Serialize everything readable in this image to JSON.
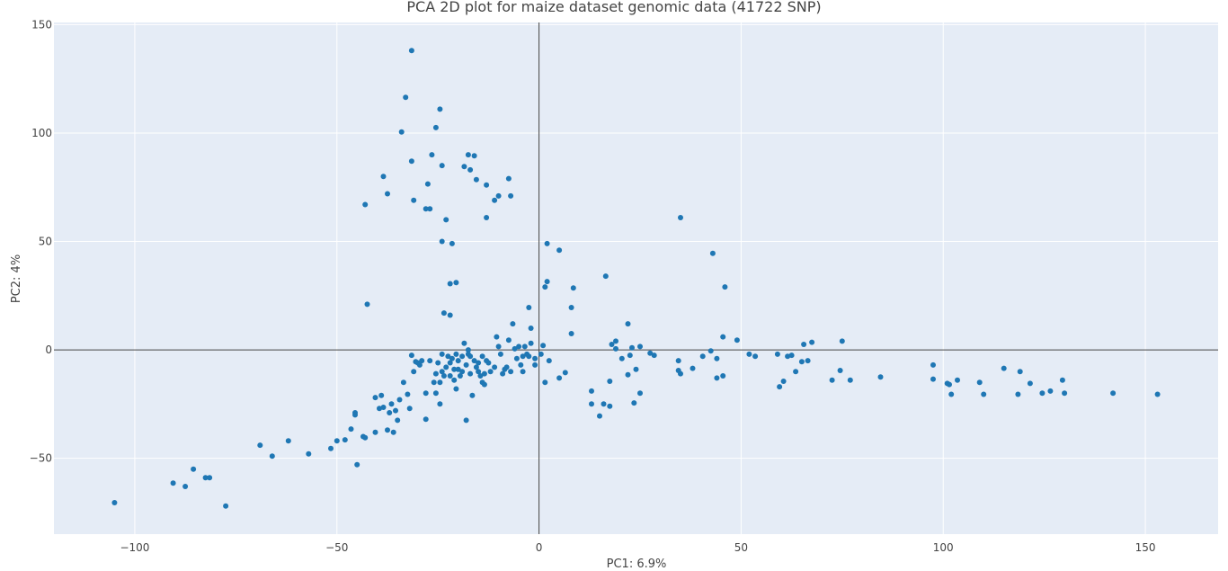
{
  "chart_data": {
    "type": "scatter",
    "title": "PCA 2D plot for maize dataset genomic data (41722 SNP)",
    "xlabel": "PC1: 6.9%",
    "ylabel": "PC2: 4%",
    "xlim": [
      -120,
      168
    ],
    "ylim": [
      -85,
      151
    ],
    "x_ticks": [
      -100,
      -50,
      0,
      50,
      100,
      150
    ],
    "y_ticks": [
      -50,
      0,
      50,
      100,
      150
    ],
    "x_tick_labels": [
      "−100",
      "−50",
      "0",
      "50",
      "100",
      "150"
    ],
    "y_tick_labels": [
      "−50",
      "0",
      "50",
      "100",
      "150"
    ],
    "grid": true,
    "zero_lines": true,
    "background_color": "#e5ecf6",
    "marker_color": "#1f77b4",
    "series": [
      {
        "points": [
          [
            -105,
            -70.5
          ],
          [
            -90.5,
            -61.5
          ],
          [
            -87.5,
            -63
          ],
          [
            -85.5,
            -55
          ],
          [
            -82.5,
            -59
          ],
          [
            -81.5,
            -59
          ],
          [
            -77.5,
            -72
          ],
          [
            -69,
            -44
          ],
          [
            -66,
            -49
          ],
          [
            -62,
            -42
          ],
          [
            -57,
            -48
          ],
          [
            -51.5,
            -45.5
          ],
          [
            -50,
            -42
          ],
          [
            -48,
            -41.5
          ],
          [
            -46.5,
            -36.5
          ],
          [
            -45.5,
            -29
          ],
          [
            -45.5,
            -30
          ],
          [
            -45,
            -53
          ],
          [
            -43.5,
            -40
          ],
          [
            -43,
            -40.5
          ],
          [
            -40.5,
            -38
          ],
          [
            -40.5,
            -22
          ],
          [
            -39.5,
            -27
          ],
          [
            -39,
            -21
          ],
          [
            -38.5,
            -26.5
          ],
          [
            -37.5,
            -37
          ],
          [
            -37,
            -29
          ],
          [
            -36.5,
            -25
          ],
          [
            -36,
            -38
          ],
          [
            -35.5,
            -28
          ],
          [
            -35,
            -32.5
          ],
          [
            -34.5,
            -23
          ],
          [
            -33.5,
            -15
          ],
          [
            -32.5,
            -20.5
          ],
          [
            -32,
            -27
          ],
          [
            -31.5,
            -2.5
          ],
          [
            -31,
            -10
          ],
          [
            -30.5,
            -5.5
          ],
          [
            -30,
            -6
          ],
          [
            -29.5,
            -7
          ],
          [
            -29,
            -5
          ],
          [
            -28,
            -20
          ],
          [
            -28,
            -32
          ],
          [
            -27,
            -5
          ],
          [
            -26,
            -15
          ],
          [
            -25.5,
            -20
          ],
          [
            -25.5,
            -11
          ],
          [
            -25,
            -6
          ],
          [
            -24.5,
            -15
          ],
          [
            -24.5,
            -25
          ],
          [
            -24,
            -2
          ],
          [
            -24,
            -10
          ],
          [
            -23.5,
            -12
          ],
          [
            -23,
            -8
          ],
          [
            -22.5,
            -3
          ],
          [
            -22,
            -12
          ],
          [
            -22,
            -6
          ],
          [
            -21.5,
            -4
          ],
          [
            -21,
            -14
          ],
          [
            -21,
            -9
          ],
          [
            -20.5,
            -2
          ],
          [
            -20.5,
            -18
          ],
          [
            -20,
            -5
          ],
          [
            -20,
            -9
          ],
          [
            -19.5,
            -12
          ],
          [
            -19,
            -3
          ],
          [
            -19,
            -10
          ],
          [
            -18.5,
            3
          ],
          [
            -18,
            -7
          ],
          [
            -18,
            -32.5
          ],
          [
            -17.5,
            0
          ],
          [
            -17.5,
            -2
          ],
          [
            -17,
            -3
          ],
          [
            -17,
            -11
          ],
          [
            -16.5,
            -21
          ],
          [
            -16,
            -5
          ],
          [
            -15.5,
            -8
          ],
          [
            -15,
            -10
          ],
          [
            -15,
            -6
          ],
          [
            -14.5,
            -12
          ],
          [
            -14,
            -3
          ],
          [
            -14,
            -15
          ],
          [
            -13.5,
            -11
          ],
          [
            -13.5,
            -16
          ],
          [
            -13,
            -5
          ],
          [
            -12.5,
            -6
          ],
          [
            -12,
            -10
          ],
          [
            -11,
            -8
          ],
          [
            -10.5,
            6
          ],
          [
            -10,
            1.5
          ],
          [
            -9.5,
            -2
          ],
          [
            -9,
            -11
          ],
          [
            -8.5,
            -9
          ],
          [
            -8,
            -8
          ],
          [
            -7.5,
            4.5
          ],
          [
            -7,
            -10
          ],
          [
            -6.5,
            12
          ],
          [
            -6,
            0.5
          ],
          [
            -5.5,
            -4
          ],
          [
            -5,
            1.5
          ],
          [
            -4.5,
            -7
          ],
          [
            -4,
            -3
          ],
          [
            -4,
            -10
          ],
          [
            -3.5,
            1.5
          ],
          [
            -3,
            -2
          ],
          [
            -2.5,
            -3
          ],
          [
            -2.5,
            19.5
          ],
          [
            -2,
            10
          ],
          [
            -2,
            3
          ],
          [
            -1,
            -4
          ],
          [
            -1,
            -7
          ],
          [
            0.5,
            -2
          ],
          [
            1,
            2
          ],
          [
            1.5,
            29
          ],
          [
            1.5,
            -15
          ],
          [
            2,
            31.5
          ],
          [
            2,
            49
          ],
          [
            2.5,
            -5
          ],
          [
            5,
            46
          ],
          [
            5,
            -13
          ],
          [
            6.5,
            -10.5
          ],
          [
            8,
            19.5
          ],
          [
            8,
            7.5
          ],
          [
            8.5,
            28.5
          ],
          [
            13,
            -19
          ],
          [
            13,
            -25
          ],
          [
            15,
            -30.5
          ],
          [
            16,
            -25
          ],
          [
            16.5,
            34
          ],
          [
            17.5,
            -14.5
          ],
          [
            17.5,
            -26
          ],
          [
            18,
            2.5
          ],
          [
            19,
            4
          ],
          [
            19,
            0.5
          ],
          [
            20.5,
            -4
          ],
          [
            22,
            -11.5
          ],
          [
            22,
            12
          ],
          [
            22.5,
            -2.5
          ],
          [
            23,
            1
          ],
          [
            23.5,
            -24.5
          ],
          [
            24,
            -9
          ],
          [
            25,
            1.5
          ],
          [
            25,
            -20
          ],
          [
            27.5,
            -1.5
          ],
          [
            28.5,
            -2.5
          ],
          [
            34.5,
            -5
          ],
          [
            34.5,
            -9.5
          ],
          [
            35,
            61
          ],
          [
            35,
            -11
          ],
          [
            38,
            -8.5
          ],
          [
            40.5,
            -3
          ],
          [
            42.5,
            -0.5
          ],
          [
            43,
            44.5
          ],
          [
            44,
            -4
          ],
          [
            44,
            -13
          ],
          [
            45.5,
            6
          ],
          [
            45.5,
            -12
          ],
          [
            46,
            29
          ],
          [
            49,
            4.5
          ],
          [
            52,
            -2
          ],
          [
            53.5,
            -3
          ],
          [
            59,
            -2
          ],
          [
            59.5,
            -17
          ],
          [
            60.5,
            -14.5
          ],
          [
            61.5,
            -3
          ],
          [
            62.5,
            -2.5
          ],
          [
            63.5,
            -10
          ],
          [
            65,
            -5.5
          ],
          [
            65.5,
            2.5
          ],
          [
            66.5,
            -5
          ],
          [
            67.5,
            3.5
          ],
          [
            72.5,
            -14
          ],
          [
            74.5,
            -9.5
          ],
          [
            75,
            4
          ],
          [
            77,
            -14
          ],
          [
            84.5,
            -12.5
          ],
          [
            97.5,
            -7
          ],
          [
            97.5,
            -13.5
          ],
          [
            101,
            -15.5
          ],
          [
            101.5,
            -16
          ],
          [
            102,
            -20.5
          ],
          [
            103.5,
            -14
          ],
          [
            109,
            -15
          ],
          [
            110,
            -20.5
          ],
          [
            115,
            -8.5
          ],
          [
            118.5,
            -20.5
          ],
          [
            119,
            -10
          ],
          [
            121.5,
            -15.5
          ],
          [
            124.5,
            -20
          ],
          [
            126.5,
            -19
          ],
          [
            129.5,
            -14
          ],
          [
            130,
            -20
          ],
          [
            142,
            -20
          ],
          [
            153,
            -20.5
          ],
          [
            -43,
            67
          ],
          [
            -42.5,
            21
          ],
          [
            -38.5,
            80
          ],
          [
            -37.5,
            72
          ],
          [
            -34,
            100.5
          ],
          [
            -33,
            116.5
          ],
          [
            -31.5,
            138
          ],
          [
            -31.5,
            87
          ],
          [
            -31,
            69
          ],
          [
            -28,
            65
          ],
          [
            -27.5,
            76.5
          ],
          [
            -27,
            65
          ],
          [
            -26.5,
            90
          ],
          [
            -25.5,
            102.5
          ],
          [
            -24.5,
            111
          ],
          [
            -24,
            50
          ],
          [
            -24,
            85
          ],
          [
            -23.5,
            17
          ],
          [
            -23,
            60
          ],
          [
            -22,
            16
          ],
          [
            -22,
            30.5
          ],
          [
            -21.5,
            49
          ],
          [
            -20.5,
            31
          ],
          [
            -18.5,
            84.5
          ],
          [
            -17.5,
            90
          ],
          [
            -17,
            83
          ],
          [
            -16,
            89.5
          ],
          [
            -15.5,
            78.5
          ],
          [
            -13,
            76
          ],
          [
            -13,
            61
          ],
          [
            -11,
            69
          ],
          [
            -10,
            71
          ],
          [
            -7.5,
            79
          ],
          [
            -7,
            71
          ]
        ]
      }
    ]
  }
}
